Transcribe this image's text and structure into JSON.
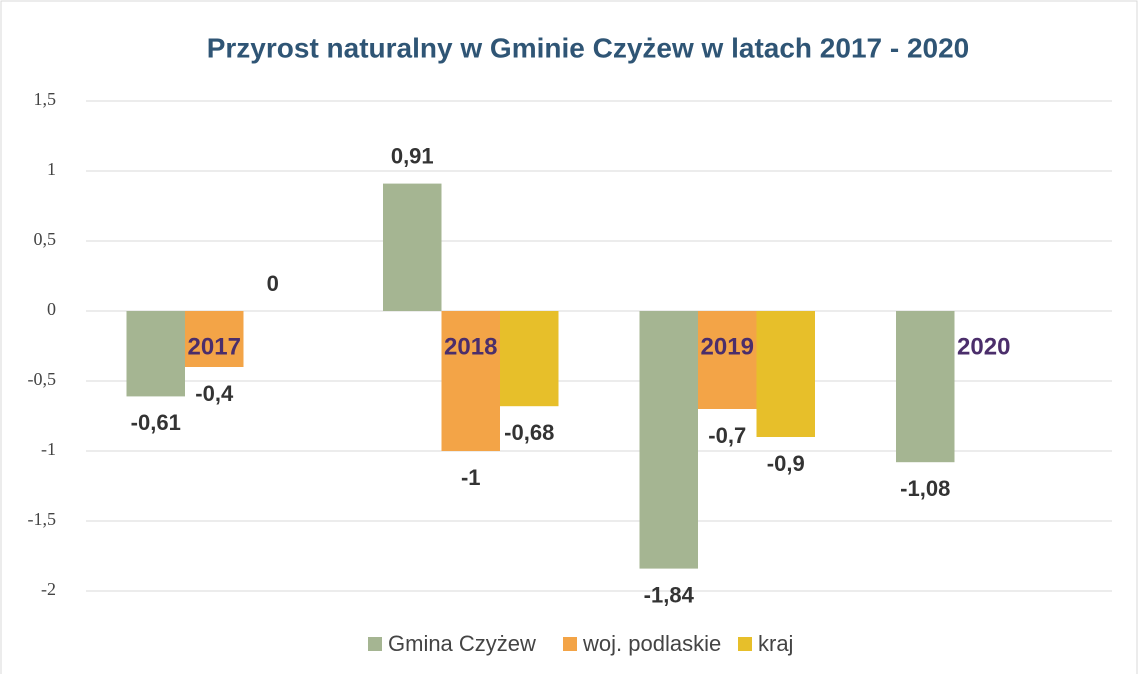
{
  "chart_data": {
    "type": "bar",
    "title": "Przyrost naturalny w Gminie Czyżew w latach 2017 - 2020",
    "categories": [
      "2017",
      "2018",
      "2019",
      "2020"
    ],
    "series": [
      {
        "name": "Gmina Czyżew",
        "color": "#a5b592",
        "values": [
          -0.61,
          0.91,
          -1.84,
          -1.08
        ],
        "value_labels": [
          "-0,61",
          "0,91",
          "-1,84",
          "-1,08"
        ]
      },
      {
        "name": "woj. podlaskie",
        "color": "#f3a447",
        "values": [
          -0.4,
          -1,
          -0.7,
          null
        ],
        "value_labels": [
          "-0,4",
          "-1",
          "-0,7",
          null
        ]
      },
      {
        "name": "kraj",
        "color": "#e7bf2a",
        "values": [
          0,
          -0.68,
          -0.9,
          null
        ],
        "value_labels": [
          "0",
          "-0,68",
          "-0,9",
          null
        ]
      }
    ],
    "ylim": [
      -2,
      1.5
    ],
    "yticks": [
      {
        "value": 1.5,
        "label": "1,5"
      },
      1,
      {
        "value": 0.5,
        "label": "0,5"
      },
      0,
      {
        "value": -0.5,
        "label": "-0,5"
      },
      -1,
      {
        "value": -1.5,
        "label": "-1,5"
      },
      -2
    ],
    "grid": true,
    "legend": "bottom"
  }
}
